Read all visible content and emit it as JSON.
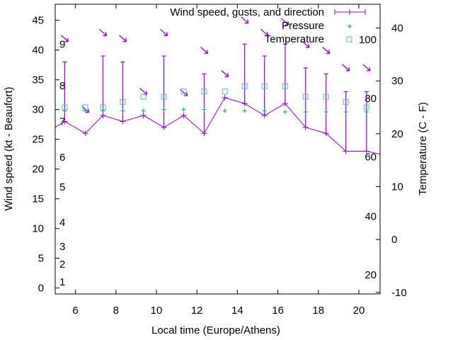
{
  "chart_data": {
    "type": "line",
    "title": "",
    "xlabel": "Local time (Europe/Athens)",
    "ylabel": "Wind speed (kt - Beaufort)",
    "y2label": "Temperature (C - F)",
    "xlim": [
      5.0,
      21.05
    ],
    "ylim": [
      -1,
      47.7
    ],
    "y2lim": [
      -10.3,
      44.5
    ],
    "xticks": [
      6,
      8,
      10,
      12,
      14,
      16,
      18,
      20
    ],
    "yticks": [
      0,
      5,
      10,
      15,
      20,
      25,
      30,
      35,
      40,
      45
    ],
    "y2ticks": [
      -10,
      0,
      10,
      20,
      30,
      40
    ],
    "grid": false,
    "legend_position": "top-right",
    "legend": [
      {
        "label": "Wind speed, gusts, and direction",
        "color": "#9400d3",
        "style": "line-errorbar"
      },
      {
        "label": "Pressure",
        "color": "#009e73",
        "style": "plus"
      },
      {
        "label": "Temperature",
        "color": "#56b4e9",
        "style": "square"
      }
    ],
    "beaufort_labels": [
      {
        "label": "1",
        "kt": 1
      },
      {
        "label": "2",
        "kt": 4
      },
      {
        "label": "3",
        "kt": 7
      },
      {
        "label": "4",
        "kt": 11
      },
      {
        "label": "5",
        "kt": 17
      },
      {
        "label": "6",
        "kt": 22
      },
      {
        "label": "7",
        "kt": 28
      },
      {
        "label": "8",
        "kt": 34
      },
      {
        "label": "9",
        "kt": 41
      }
    ],
    "fahrenheit_labels": [
      {
        "label": "20",
        "celsius": -6.7
      },
      {
        "label": "40",
        "celsius": 4.4
      },
      {
        "label": "60",
        "celsius": 15.6
      },
      {
        "label": "80",
        "celsius": 26.7
      },
      {
        "label": "100",
        "celsius": 37.8
      }
    ],
    "x": [
      5.47,
      6.49,
      7.36,
      8.34,
      9.36,
      10.37,
      11.35,
      12.36,
      13.38,
      14.36,
      15.34,
      16.36,
      17.37,
      18.38,
      19.36,
      20.38
    ],
    "series": [
      {
        "name": "Wind speed",
        "axis": "y",
        "color": "#9400d3",
        "values": [
          28,
          26,
          29,
          28,
          29,
          27,
          29,
          26,
          32,
          31,
          29,
          31,
          27,
          26,
          23,
          23
        ],
        "line_from_left_edge": 27,
        "line_to_right_edge": 22.5
      },
      {
        "name": "Gusts",
        "axis": "y",
        "color": "#9400d3",
        "values": [
          38,
          null,
          39,
          38,
          null,
          39,
          null,
          36,
          null,
          41,
          39,
          41,
          37,
          36,
          33,
          33
        ]
      },
      {
        "name": "Direction marker level",
        "axis": "y",
        "color": "#9400d3",
        "direction": "NW",
        "values": [
          41.9,
          30,
          42.9,
          41.9,
          33,
          42.9,
          32.8,
          39.9,
          36,
          45,
          42.9,
          44.7,
          40.9,
          39.9,
          37,
          37
        ]
      },
      {
        "name": "Pressure",
        "axis": "y",
        "color": "#009e73",
        "values": [
          29.8,
          29.8,
          29.8,
          29.8,
          29.8,
          30,
          30,
          30,
          29.8,
          29.8,
          29.8,
          29.6,
          29.6,
          29.6,
          29.6,
          29.6
        ]
      },
      {
        "name": "Temperature",
        "axis": "y2",
        "color": "#56b4e9",
        "values": [
          25,
          25,
          25,
          26,
          27,
          27,
          28,
          28,
          28,
          29,
          29,
          29,
          27,
          27,
          26,
          25
        ]
      }
    ]
  }
}
